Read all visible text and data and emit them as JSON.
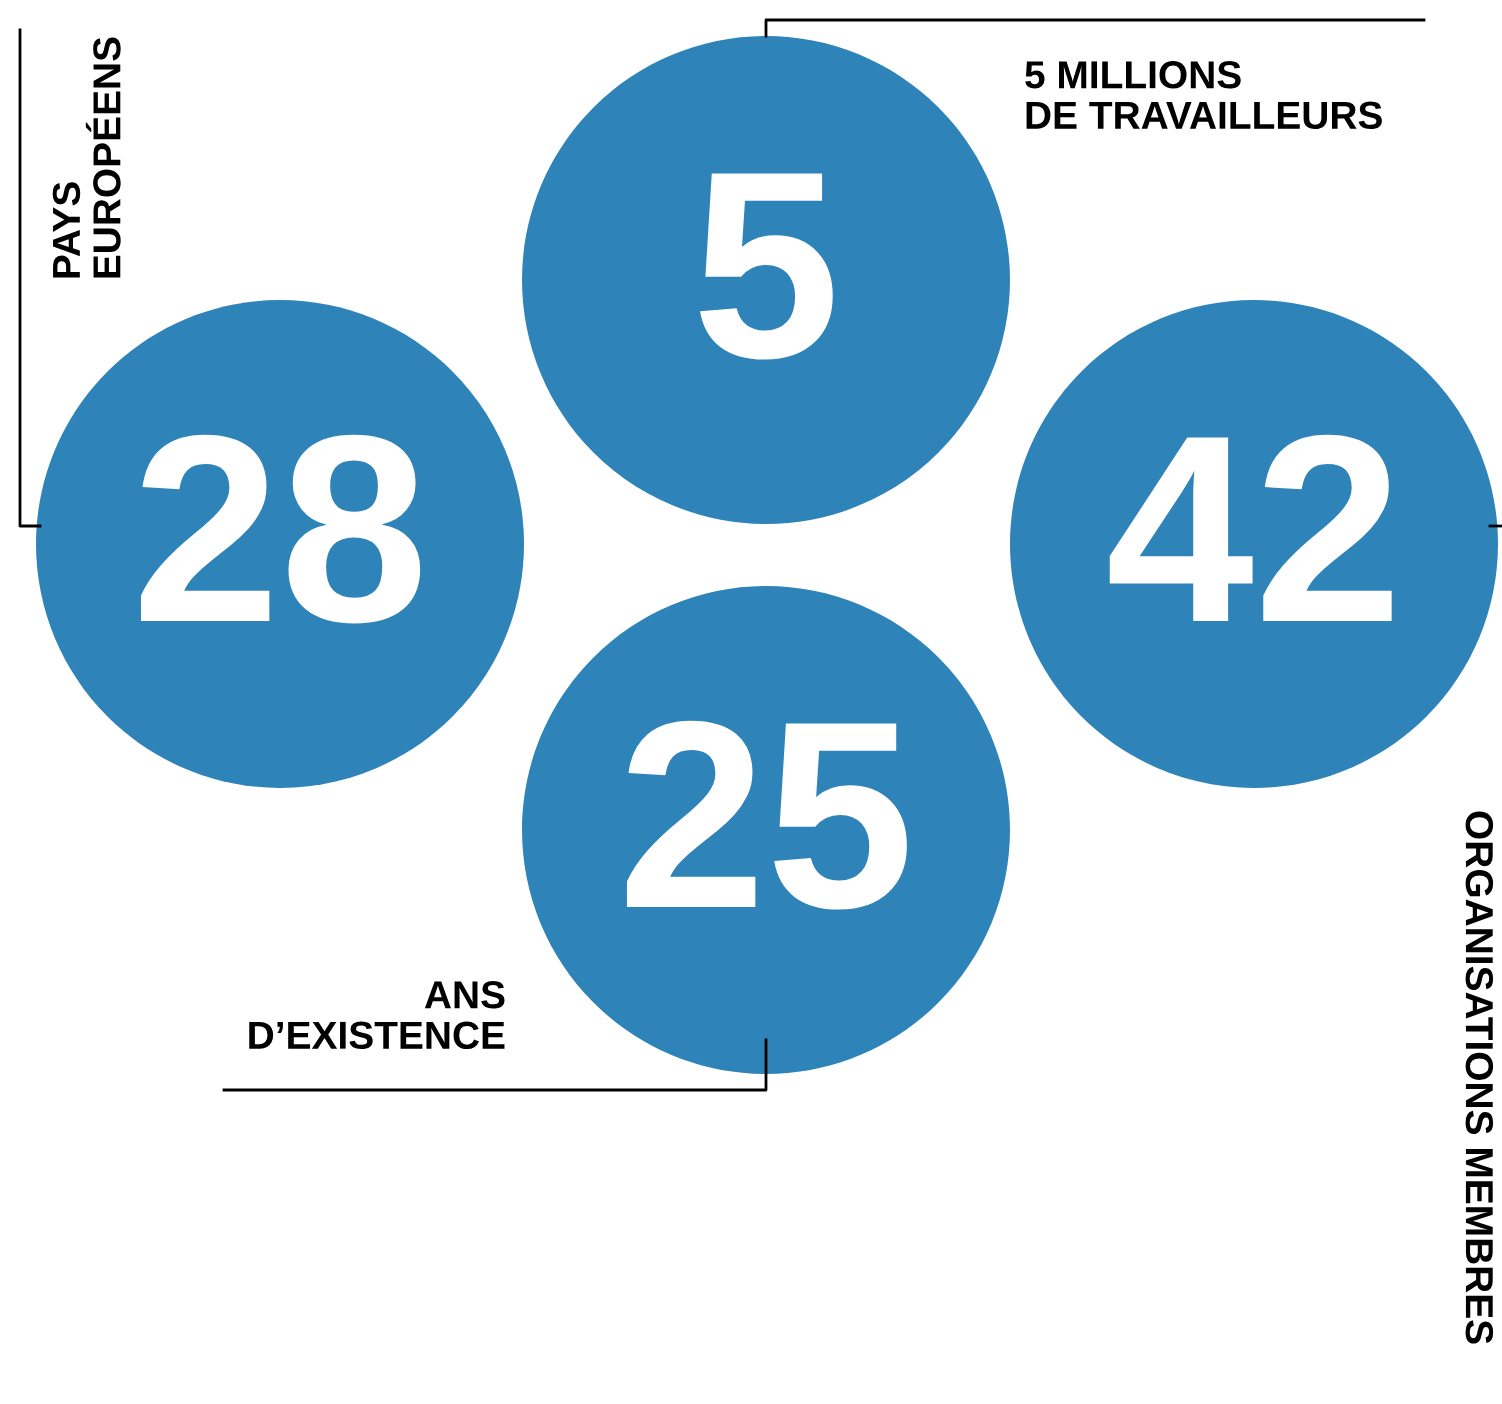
{
  "chart_data": {
    "type": "other",
    "categories": [
      "5 MILLIONS\nDE TRAVAILLEURS",
      "PAYS\nEUROPÉENS",
      "ORGANISATIONS MEMBRES",
      "ANS\nD’EXISTENCE"
    ],
    "values": [
      5,
      28,
      42,
      25
    ],
    "data_labels": true,
    "colors": [
      "#2e83b8",
      "#2e83b8",
      "#2e83b8",
      "#2e83b8"
    ]
  }
}
